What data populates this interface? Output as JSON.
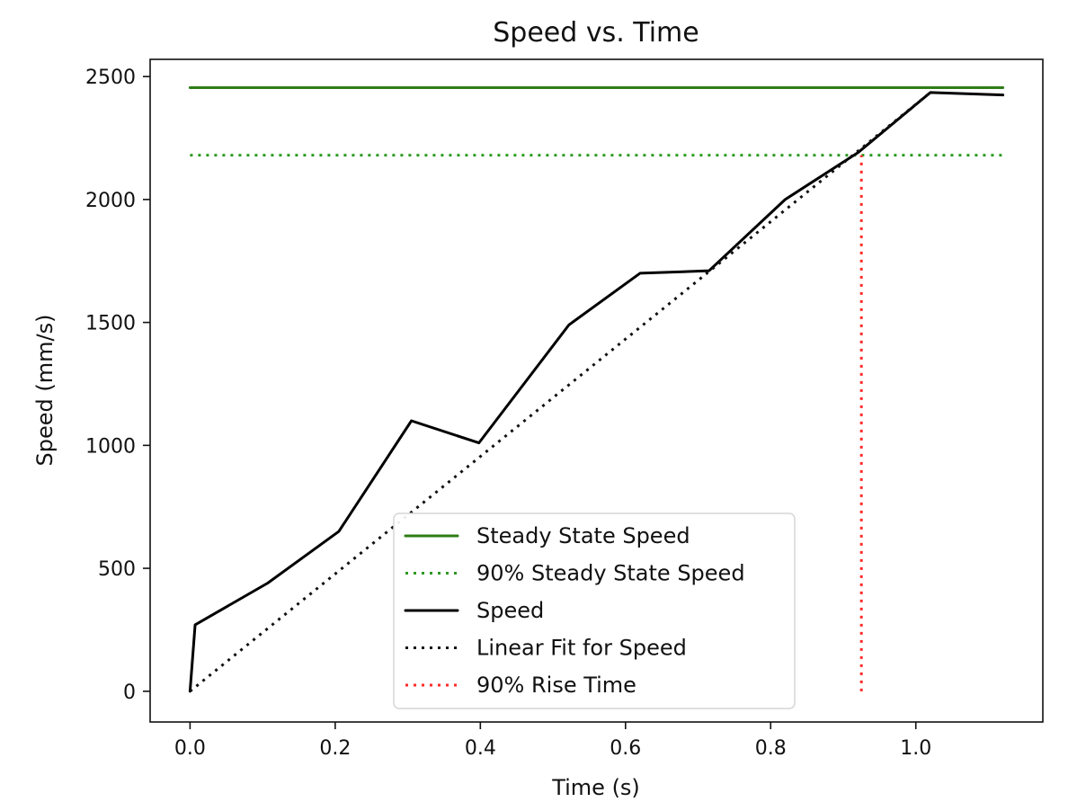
{
  "chart_data": {
    "type": "line",
    "title": "Speed vs. Time",
    "xlabel": "Time (s)",
    "ylabel": "Speed (mm/s)",
    "xlim": [
      -0.055,
      1.175
    ],
    "ylim": [
      -125,
      2570
    ],
    "xticks": [
      {
        "value": 0.0,
        "label": "0.0"
      },
      {
        "value": 0.2,
        "label": "0.2"
      },
      {
        "value": 0.4,
        "label": "0.4"
      },
      {
        "value": 0.6,
        "label": "0.6"
      },
      {
        "value": 0.8,
        "label": "0.8"
      },
      {
        "value": 1.0,
        "label": "1.0"
      }
    ],
    "yticks": [
      {
        "value": 0,
        "label": "0"
      },
      {
        "value": 500,
        "label": "500"
      },
      {
        "value": 1000,
        "label": "1000"
      },
      {
        "value": 1500,
        "label": "1500"
      },
      {
        "value": 2000,
        "label": "2000"
      },
      {
        "value": 2500,
        "label": "2500"
      }
    ],
    "grid": false,
    "legend_position": "lower-center",
    "series": [
      {
        "name": "Steady State Speed",
        "color": "#2e7d16",
        "dash": "solid",
        "x": [
          0.0,
          1.12
        ],
        "y": [
          2455,
          2455
        ]
      },
      {
        "name": "90% Steady State Speed",
        "color": "#2e9a22",
        "dash": "dotted",
        "x": [
          0.0,
          1.12
        ],
        "y": [
          2180,
          2180
        ]
      },
      {
        "name": "Speed",
        "color": "#000000",
        "dash": "solid",
        "x": [
          0.0,
          0.007,
          0.107,
          0.205,
          0.305,
          0.398,
          0.522,
          0.62,
          0.715,
          0.82,
          0.92,
          1.02,
          1.12
        ],
        "y": [
          0,
          270,
          440,
          650,
          1100,
          1010,
          1490,
          1700,
          1710,
          2000,
          2190,
          2435,
          2425
        ]
      },
      {
        "name": "Linear Fit for Speed",
        "color": "#111111",
        "dash": "dotted",
        "x": [
          0.0,
          1.02
        ],
        "y": [
          0,
          2435
        ]
      },
      {
        "name": "90% Rise Time",
        "color": "#ff2a2a",
        "dash": "dotted",
        "x": [
          0.925,
          0.925
        ],
        "y": [
          0,
          2180
        ]
      }
    ]
  }
}
